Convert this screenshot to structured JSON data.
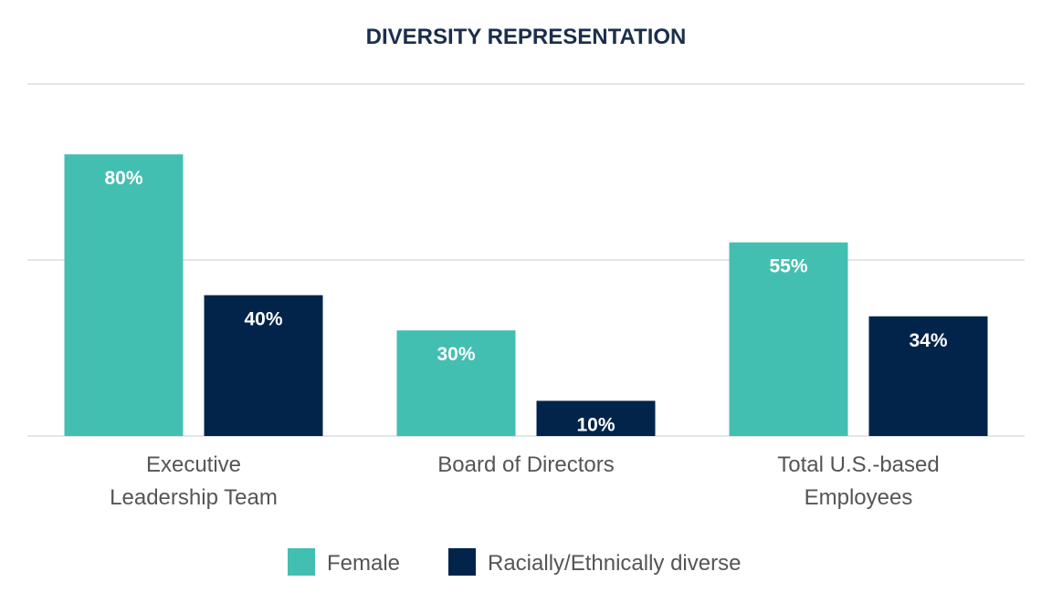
{
  "chart_data": {
    "type": "bar",
    "title": "DIVERSITY REPRESENTATION",
    "xlabel": "",
    "ylabel": "",
    "categories": [
      [
        "Executive",
        "Leadership Team"
      ],
      [
        "Board of Directors"
      ],
      [
        "Total U.S.-based",
        "Employees"
      ]
    ],
    "series": [
      {
        "name": "Female",
        "color": "#43bfb2",
        "values": [
          80,
          30,
          55
        ],
        "labels": [
          "80%",
          "30%",
          "55%"
        ]
      },
      {
        "name": "Racially/Ethnically diverse",
        "color": "#02244a",
        "values": [
          40,
          10,
          34
        ],
        "labels": [
          "40%",
          "10%",
          "34%"
        ]
      }
    ],
    "ylim": [
      0,
      100
    ],
    "gridlines": [
      0,
      50,
      100
    ],
    "grid": true,
    "legend": "bottom-center",
    "colors": {
      "title": "#1b2e4b",
      "gridline": "#e3e6ea",
      "category_text": "#555555",
      "legend_text": "#555555",
      "value_text": "#ffffff"
    }
  }
}
